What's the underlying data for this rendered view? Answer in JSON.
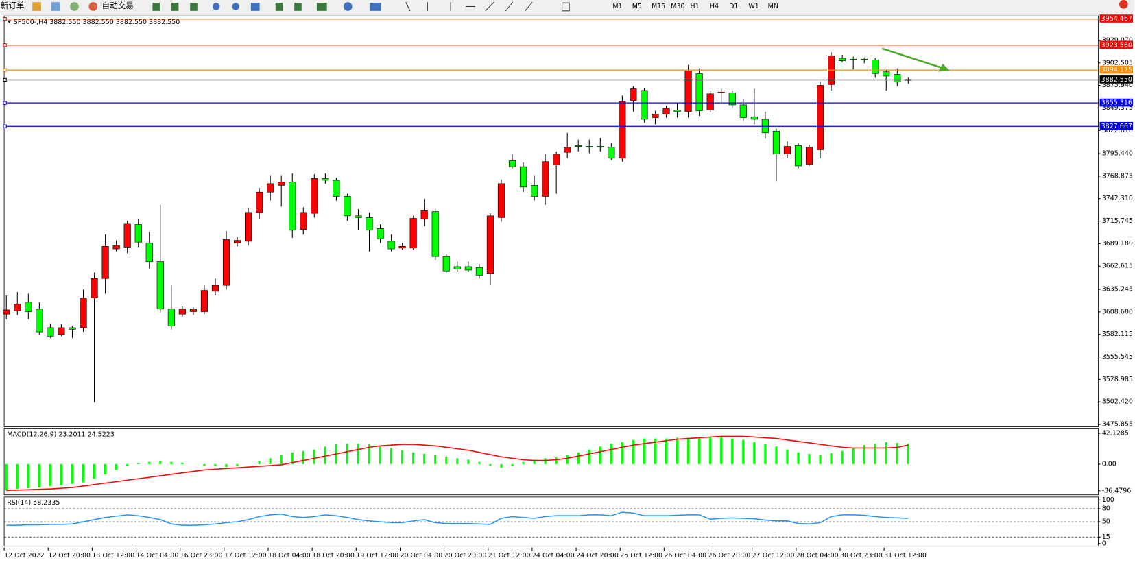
{
  "toolbar": {
    "new_order": "新订单",
    "auto_trade": "自动交易",
    "timeframes": [
      "M1",
      "M5",
      "M15",
      "M30",
      "H1",
      "H4",
      "D1",
      "W1",
      "MN"
    ]
  },
  "chart_data": [
    {
      "type": "candlestick",
      "title": "SP500-,H4 3882.550 3882.550 3882.550 3882.550",
      "up_color": "#ff0000",
      "down_color": "#00ff00",
      "categories": [
        "12 Oct 2022",
        null,
        null,
        null,
        "12 Oct 20:00",
        null,
        null,
        null,
        "13 Oct 12:00",
        null,
        null,
        null,
        "14 Oct 04:00",
        null,
        null,
        null,
        "16 Oct 23:00",
        null,
        null,
        null,
        "17 Oct 12:00",
        null,
        null,
        null,
        "18 Oct 04:00",
        null,
        null,
        null,
        "18 Oct 20:00",
        null,
        null,
        null,
        "19 Oct 12:00",
        null,
        null,
        null,
        "20 Oct 04:00",
        null,
        null,
        null,
        "20 Oct 20:00",
        null,
        null,
        null,
        "21 Oct 12:00",
        null,
        null,
        null,
        "24 Oct 04:00",
        null,
        null,
        null,
        "24 Oct 20:00",
        null,
        null,
        null,
        "25 Oct 12:00",
        null,
        null,
        null,
        "26 Oct 04:00",
        null,
        null,
        null,
        "26 Oct 20:00",
        null,
        null,
        null,
        "27 Oct 12:00",
        null,
        null,
        null,
        "28 Oct 04:00",
        null,
        null,
        null,
        "30 Oct 23:00",
        null,
        null,
        null,
        "31 Oct 12:00",
        null,
        null
      ],
      "open": [
        3606,
        3610,
        3620,
        3612,
        3590,
        3582,
        3590,
        3590,
        3625,
        3648,
        3683,
        3685,
        3712,
        3690,
        3668,
        3612,
        3606,
        3609,
        3609,
        3633,
        3640,
        3690,
        3692,
        3726,
        3750,
        3758,
        3762,
        3706,
        3725,
        3766,
        3764,
        3745,
        3722,
        3720,
        3707,
        3692,
        3684,
        3684,
        3718,
        3727,
        3674,
        3662,
        3662,
        3661,
        3654,
        3720,
        3787,
        3780,
        3758,
        3745,
        3782,
        3797,
        3805,
        3804,
        3804,
        3803,
        3790,
        3858,
        3870,
        3838,
        3842,
        3847,
        3845,
        3890,
        3847,
        3867,
        3867,
        3853,
        3839,
        3836,
        3822,
        3795,
        3805,
        3783,
        3800,
        3877,
        3908,
        3907,
        3907,
        3906,
        3892,
        3889,
        3882
      ],
      "high": [
        3628,
        3632,
        3630,
        3620,
        3595,
        3594,
        3592,
        3635,
        3655,
        3700,
        3693,
        3716,
        3718,
        3703,
        3735,
        3640,
        3615,
        3614,
        3640,
        3648,
        3704,
        3697,
        3731,
        3755,
        3770,
        3770,
        3772,
        3732,
        3771,
        3772,
        3767,
        3748,
        3730,
        3726,
        3712,
        3700,
        3690,
        3722,
        3742,
        3730,
        3677,
        3668,
        3668,
        3665,
        3725,
        3765,
        3795,
        3785,
        3770,
        3795,
        3798,
        3820,
        3812,
        3812,
        3814,
        3808,
        3864,
        3875,
        3873,
        3846,
        3852,
        3855,
        3900,
        3896,
        3870,
        3872,
        3870,
        3860,
        3872,
        3845,
        3825,
        3810,
        3808,
        3806,
        3880,
        3915,
        3912,
        3910,
        3909,
        3908,
        3894,
        3896,
        3885
      ],
      "low": [
        3600,
        3605,
        3600,
        3582,
        3578,
        3580,
        3578,
        3585,
        3502,
        3630,
        3680,
        3678,
        3685,
        3660,
        3608,
        3588,
        3603,
        3605,
        3606,
        3628,
        3635,
        3686,
        3687,
        3718,
        3740,
        3733,
        3696,
        3700,
        3720,
        3760,
        3740,
        3716,
        3705,
        3680,
        3690,
        3680,
        3682,
        3682,
        3710,
        3670,
        3655,
        3656,
        3656,
        3648,
        3640,
        3715,
        3778,
        3750,
        3740,
        3735,
        3748,
        3790,
        3798,
        3796,
        3798,
        3788,
        3786,
        3845,
        3832,
        3830,
        3838,
        3838,
        3838,
        3840,
        3844,
        3855,
        3850,
        3834,
        3830,
        3813,
        3763,
        3790,
        3778,
        3781,
        3790,
        3870,
        3903,
        3895,
        3902,
        3885,
        3870,
        3875,
        3878
      ],
      "close": [
        3611,
        3618,
        3609,
        3585,
        3580,
        3590,
        3588,
        3625,
        3648,
        3686,
        3687,
        3713,
        3691,
        3668,
        3612,
        3592,
        3612,
        3612,
        3634,
        3640,
        3694,
        3693,
        3726,
        3750,
        3760,
        3762,
        3705,
        3726,
        3766,
        3764,
        3745,
        3722,
        3720,
        3705,
        3695,
        3683,
        3686,
        3719,
        3728,
        3674,
        3657,
        3659,
        3658,
        3652,
        3722,
        3760,
        3780,
        3756,
        3745,
        3786,
        3795,
        3803,
        3804,
        3803,
        3803,
        3790,
        3857,
        3872,
        3836,
        3842,
        3849,
        3845,
        3893,
        3846,
        3866,
        3868,
        3853,
        3838,
        3836,
        3820,
        3795,
        3804,
        3781,
        3803,
        3876,
        3911,
        3905,
        3906,
        3906,
        3890,
        3887,
        3880,
        3883
      ],
      "ylim": [
        3473,
        3958
      ],
      "yticks": [
        {
          "value": 3929.07,
          "label": "3929.070"
        },
        {
          "value": 3902.505,
          "label": "3902.505"
        },
        {
          "value": 3875.94,
          "label": "3875.940"
        },
        {
          "value": 3849.375,
          "label": "3849.375"
        },
        {
          "value": 3822.81,
          "label": "3822.810"
        },
        {
          "value": 3795.44,
          "label": "3795.440"
        },
        {
          "value": 3768.875,
          "label": "3768.875"
        },
        {
          "value": 3742.31,
          "label": "3742.310"
        },
        {
          "value": 3715.745,
          "label": "3715.745"
        },
        {
          "value": 3689.18,
          "label": "3689.180"
        },
        {
          "value": 3662.615,
          "label": "3662.615"
        },
        {
          "value": 3635.245,
          "label": "3635.245"
        },
        {
          "value": 3608.68,
          "label": "3608.680"
        },
        {
          "value": 3582.115,
          "label": "3582.115"
        },
        {
          "value": 3555.545,
          "label": "3555.545"
        },
        {
          "value": 3528.985,
          "label": "3528.985"
        },
        {
          "value": 3502.42,
          "label": "3502.420"
        },
        {
          "value": 3475.855,
          "label": "3475.855"
        }
      ],
      "levels": [
        {
          "value": 3954.467,
          "label": "3954.467",
          "color": "#ff0000"
        },
        {
          "value": 3923.56,
          "label": "3923.560",
          "color": "#ff0000"
        },
        {
          "value": 3894.175,
          "label": "3894.175",
          "color": "#ff8c00"
        },
        {
          "value": 3882.55,
          "label": "3882.550",
          "color": "#000000"
        },
        {
          "value": 3855.316,
          "label": "3855.316",
          "color": "#0000ff"
        },
        {
          "value": 3827.667,
          "label": "3827.667",
          "color": "#0000ff"
        }
      ]
    },
    {
      "type": "macd",
      "title": "MACD(12,26,9) 23.2011 24.5223",
      "histogram": {
        "color": "#00ff00",
        "values": [
          -35,
          -34,
          -33,
          -32,
          -30,
          -29,
          -27,
          -25,
          -20,
          -14,
          -8,
          -3,
          1,
          3,
          4,
          3,
          2,
          0,
          -2,
          -3,
          -4,
          -3,
          0,
          4,
          8,
          12,
          16,
          18,
          20,
          24,
          27,
          28,
          28,
          27,
          25,
          22,
          19,
          16,
          14,
          12,
          10,
          8,
          6,
          3,
          -2,
          -5,
          -3,
          3,
          6,
          8,
          9,
          12,
          16,
          20,
          24,
          28,
          30,
          33,
          35,
          35,
          35,
          36,
          36,
          36,
          37,
          37,
          35,
          33,
          30,
          27,
          24,
          20,
          16,
          14,
          12,
          15,
          18,
          22,
          26,
          28,
          30,
          29,
          28
        ]
      },
      "signal": {
        "color": "#ff0000",
        "values": [
          -36,
          -35.5,
          -35,
          -34.5,
          -34,
          -33,
          -32,
          -30,
          -28,
          -26,
          -24,
          -22,
          -20,
          -18,
          -16,
          -14,
          -12,
          -10,
          -8,
          -7,
          -6,
          -5,
          -4,
          -3,
          -2,
          -1,
          2,
          5,
          8,
          11,
          14,
          17,
          20,
          23,
          25,
          26,
          27,
          27,
          26,
          25,
          23,
          21,
          19,
          16,
          13,
          10,
          8,
          6,
          5,
          5,
          6,
          8,
          11,
          14,
          17,
          20,
          23,
          26,
          28,
          30,
          32,
          34,
          35,
          36,
          37,
          38,
          38,
          38,
          37,
          36,
          35,
          33,
          31,
          29,
          27,
          25,
          23,
          22,
          22,
          22,
          22,
          23,
          26
        ]
      },
      "ylim": [
        -42,
        49
      ],
      "yticks": [
        42.1285,
        {
          "value": 0,
          "label": "0.00"
        },
        -36.4796
      ]
    },
    {
      "type": "line",
      "title": "RSI(14) 58.2335",
      "color": "#1e90ff",
      "values": [
        42,
        42,
        43,
        43,
        44,
        44,
        45,
        50,
        55,
        60,
        63,
        66,
        64,
        60,
        55,
        45,
        42,
        42,
        43,
        45,
        48,
        50,
        55,
        62,
        66,
        68,
        62,
        60,
        62,
        66,
        64,
        60,
        55,
        52,
        50,
        48,
        48,
        52,
        55,
        48,
        46,
        46,
        46,
        45,
        44,
        58,
        62,
        60,
        58,
        62,
        64,
        64,
        64,
        66,
        66,
        64,
        72,
        70,
        64,
        64,
        64,
        65,
        66,
        66,
        56,
        58,
        59,
        58,
        57,
        54,
        52,
        52,
        46,
        45,
        48,
        62,
        66,
        66,
        65,
        62,
        60,
        59,
        58
      ],
      "ylim": [
        -6,
        107
      ],
      "yticks": [
        100,
        80,
        50,
        15,
        0
      ],
      "levels": [
        80,
        50,
        15
      ]
    }
  ]
}
